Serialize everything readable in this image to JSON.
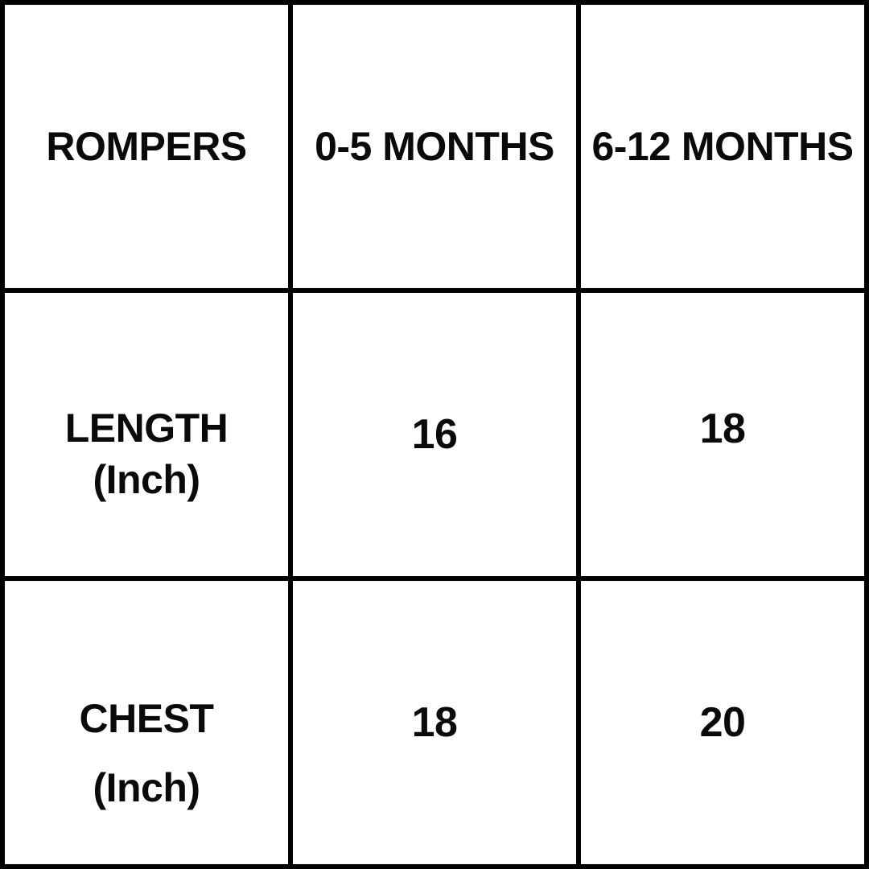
{
  "table": {
    "header_row": [
      "ROMPERS",
      "0-5 MONTHS",
      "6-12 MONTHS"
    ],
    "body_rows": [
      {
        "label": [
          "LENGTH",
          "(Inch)"
        ],
        "values": [
          "16",
          "18"
        ]
      },
      {
        "label": [
          "CHEST",
          "(Inch)"
        ],
        "values": [
          "18",
          "20"
        ]
      }
    ]
  },
  "chart_data": {
    "type": "table",
    "title": "ROMPERS",
    "columns": [
      "ROMPERS",
      "0-5 MONTHS",
      "6-12 MONTHS"
    ],
    "rows": [
      [
        "LENGTH (Inch)",
        16,
        18
      ],
      [
        "CHEST (Inch)",
        18,
        20
      ]
    ],
    "units": "Inch"
  },
  "colors": {
    "grid_line": "#000000",
    "cell_background": "#ffffff",
    "text": "#0a0a0a"
  }
}
